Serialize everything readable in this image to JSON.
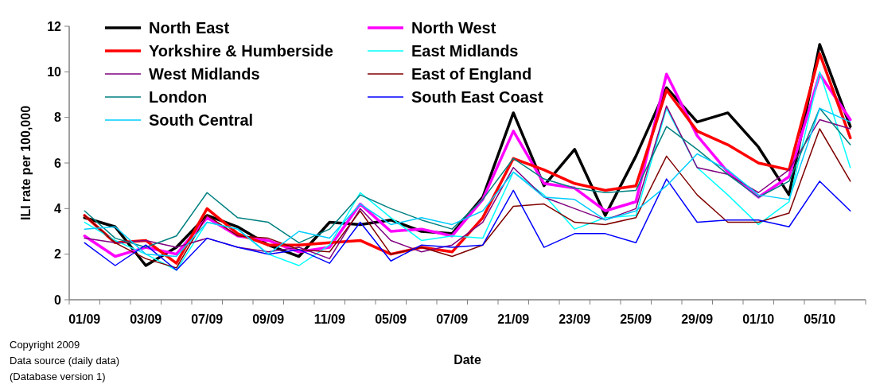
{
  "chart_data": {
    "type": "line",
    "xlabel": "Date",
    "ylabel": "ILI rate per 100,000",
    "categories": [
      "01/09",
      null,
      "03/09",
      null,
      "07/09",
      null,
      "09/09",
      null,
      "11/09",
      null,
      "05/09",
      null,
      "07/09",
      null,
      "21/09",
      null,
      "23/09",
      null,
      "25/09",
      null,
      "29/09",
      null,
      "01/10",
      null,
      "05/10",
      null
    ],
    "ylim": [
      0,
      12
    ],
    "yticks": [
      0,
      2,
      4,
      6,
      8,
      10,
      12
    ],
    "grid": false,
    "legend": "top left",
    "marker": "none",
    "line_style": "solid",
    "series": [
      {
        "name": "North East",
        "color": "#000000",
        "values": [
          3.6,
          3.2,
          1.5,
          2.3,
          3.7,
          3.2,
          2.4,
          1.9,
          3.4,
          3.3,
          3.5,
          3.0,
          2.9,
          4.5,
          8.2,
          5.0,
          6.6,
          3.7,
          6.3,
          9.3,
          7.8,
          8.2,
          6.7,
          4.6,
          11.2,
          7.6
        ]
      },
      {
        "name": "North West",
        "color": "#ff00ff",
        "values": [
          2.8,
          1.9,
          2.3,
          2.0,
          3.6,
          2.8,
          2.6,
          2.1,
          2.3,
          4.2,
          3.0,
          3.1,
          2.8,
          4.4,
          7.4,
          5.1,
          4.9,
          3.9,
          4.3,
          9.9,
          7.2,
          5.6,
          4.5,
          5.4,
          9.9,
          7.9
        ]
      },
      {
        "name": "Yorkshire & Humberside",
        "color": "#ff0000",
        "values": [
          3.7,
          2.5,
          2.6,
          1.6,
          4.0,
          2.9,
          2.4,
          2.4,
          2.5,
          2.6,
          2.0,
          2.3,
          2.1,
          3.6,
          6.2,
          5.7,
          5.1,
          4.8,
          5.0,
          9.2,
          7.4,
          6.8,
          6.0,
          5.7,
          10.8,
          7.1
        ]
      },
      {
        "name": "East Midlands",
        "color": "#00ffff",
        "values": [
          3.4,
          2.6,
          2.0,
          1.3,
          3.4,
          3.1,
          2.0,
          1.5,
          2.4,
          4.7,
          3.6,
          2.6,
          2.8,
          2.7,
          5.6,
          4.6,
          3.1,
          3.6,
          3.7,
          8.4,
          5.8,
          4.6,
          3.3,
          4.3,
          10.0,
          5.8
        ]
      },
      {
        "name": "West Midlands",
        "color": "#800080",
        "values": [
          2.7,
          2.5,
          2.6,
          2.3,
          2.7,
          2.3,
          2.1,
          2.3,
          1.8,
          4.0,
          2.6,
          2.1,
          2.4,
          3.4,
          5.8,
          4.5,
          4.0,
          3.5,
          4.0,
          8.5,
          5.8,
          5.5,
          4.7,
          5.7,
          7.9,
          7.5
        ]
      },
      {
        "name": "East of England",
        "color": "#800000",
        "values": [
          3.7,
          2.5,
          1.8,
          1.4,
          3.7,
          2.8,
          2.7,
          2.2,
          2.1,
          3.9,
          2.0,
          2.3,
          1.9,
          2.4,
          4.1,
          4.2,
          3.4,
          3.3,
          3.6,
          6.3,
          4.6,
          3.4,
          3.4,
          3.8,
          7.5,
          5.2
        ]
      },
      {
        "name": "London",
        "color": "#008080",
        "values": [
          3.9,
          2.7,
          2.3,
          2.8,
          4.7,
          3.6,
          3.4,
          2.5,
          3.1,
          4.6,
          4.0,
          3.5,
          3.1,
          4.4,
          6.2,
          5.3,
          4.9,
          4.7,
          4.8,
          7.6,
          6.6,
          5.5,
          4.5,
          5.2,
          8.4,
          6.8
        ]
      },
      {
        "name": "South East Coast",
        "color": "#0000ff",
        "values": [
          2.5,
          1.5,
          2.4,
          1.3,
          2.7,
          2.3,
          2.0,
          2.2,
          1.6,
          3.4,
          1.7,
          2.4,
          2.3,
          2.4,
          4.8,
          2.3,
          2.9,
          2.9,
          2.5,
          5.3,
          3.4,
          3.5,
          3.5,
          3.2,
          5.2,
          3.9
        ]
      },
      {
        "name": "South Central",
        "color": "#00ccff",
        "values": [
          3.1,
          3.2,
          2.0,
          1.9,
          3.4,
          3.1,
          2.0,
          3.0,
          2.7,
          4.2,
          3.3,
          3.6,
          3.3,
          3.9,
          5.6,
          4.5,
          4.4,
          3.5,
          3.9,
          5.0,
          6.4,
          5.7,
          4.6,
          4.4,
          8.4,
          7.8
        ]
      }
    ],
    "annotations": [
      "Copyright 2009",
      "Data source (daily data)",
      "(Database version 1)"
    ]
  }
}
